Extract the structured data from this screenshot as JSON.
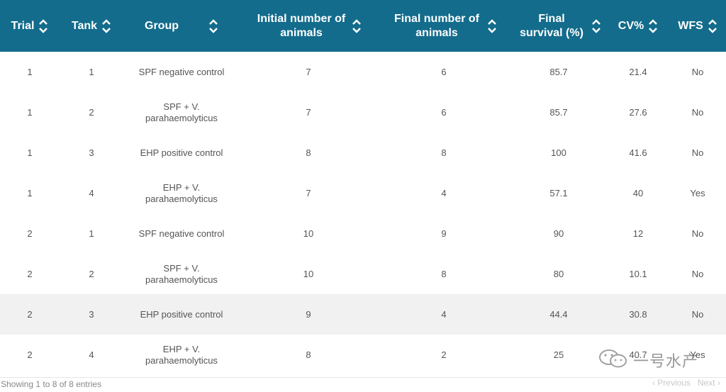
{
  "columns": [
    {
      "label": "Trial"
    },
    {
      "label": "Tank"
    },
    {
      "label": "Group"
    },
    {
      "label": "Initial number of animals"
    },
    {
      "label": "Final number of animals"
    },
    {
      "label": "Final survival (%)"
    },
    {
      "label": "CV%"
    },
    {
      "label": "WFS"
    }
  ],
  "rows": [
    {
      "trial": "1",
      "tank": "1",
      "group": "SPF negative control",
      "initial": "7",
      "final": "6",
      "survival": "85.7",
      "cv": "21.4",
      "wfs": "No"
    },
    {
      "trial": "1",
      "tank": "2",
      "group": "SPF + V. parahaemolyticus",
      "initial": "7",
      "final": "6",
      "survival": "85.7",
      "cv": "27.6",
      "wfs": "No"
    },
    {
      "trial": "1",
      "tank": "3",
      "group": "EHP positive control",
      "initial": "8",
      "final": "8",
      "survival": "100",
      "cv": "41.6",
      "wfs": "No"
    },
    {
      "trial": "1",
      "tank": "4",
      "group": "EHP + V. parahaemolyticus",
      "initial": "7",
      "final": "4",
      "survival": "57.1",
      "cv": "40",
      "wfs": "Yes"
    },
    {
      "trial": "2",
      "tank": "1",
      "group": "SPF negative control",
      "initial": "10",
      "final": "9",
      "survival": "90",
      "cv": "12",
      "wfs": "No"
    },
    {
      "trial": "2",
      "tank": "2",
      "group": "SPF + V. parahaemolyticus",
      "initial": "10",
      "final": "8",
      "survival": "80",
      "cv": "10.1",
      "wfs": "No"
    },
    {
      "trial": "2",
      "tank": "3",
      "group": "EHP positive control",
      "initial": "9",
      "final": "4",
      "survival": "44.4",
      "cv": "30.8",
      "wfs": "No"
    },
    {
      "trial": "2",
      "tank": "4",
      "group": "EHP + V. parahaemolyticus",
      "initial": "8",
      "final": "2",
      "survival": "25",
      "cv": "40.7",
      "wfs": "Yes"
    }
  ],
  "footer": {
    "info": "Showing 1 to 8 of 8 entries",
    "previous": "Previous",
    "next": "Next"
  },
  "watermark": {
    "text": "一号水产"
  },
  "colors": {
    "header_bg": "#136c8c",
    "highlight_row": "#f1f1f1"
  }
}
